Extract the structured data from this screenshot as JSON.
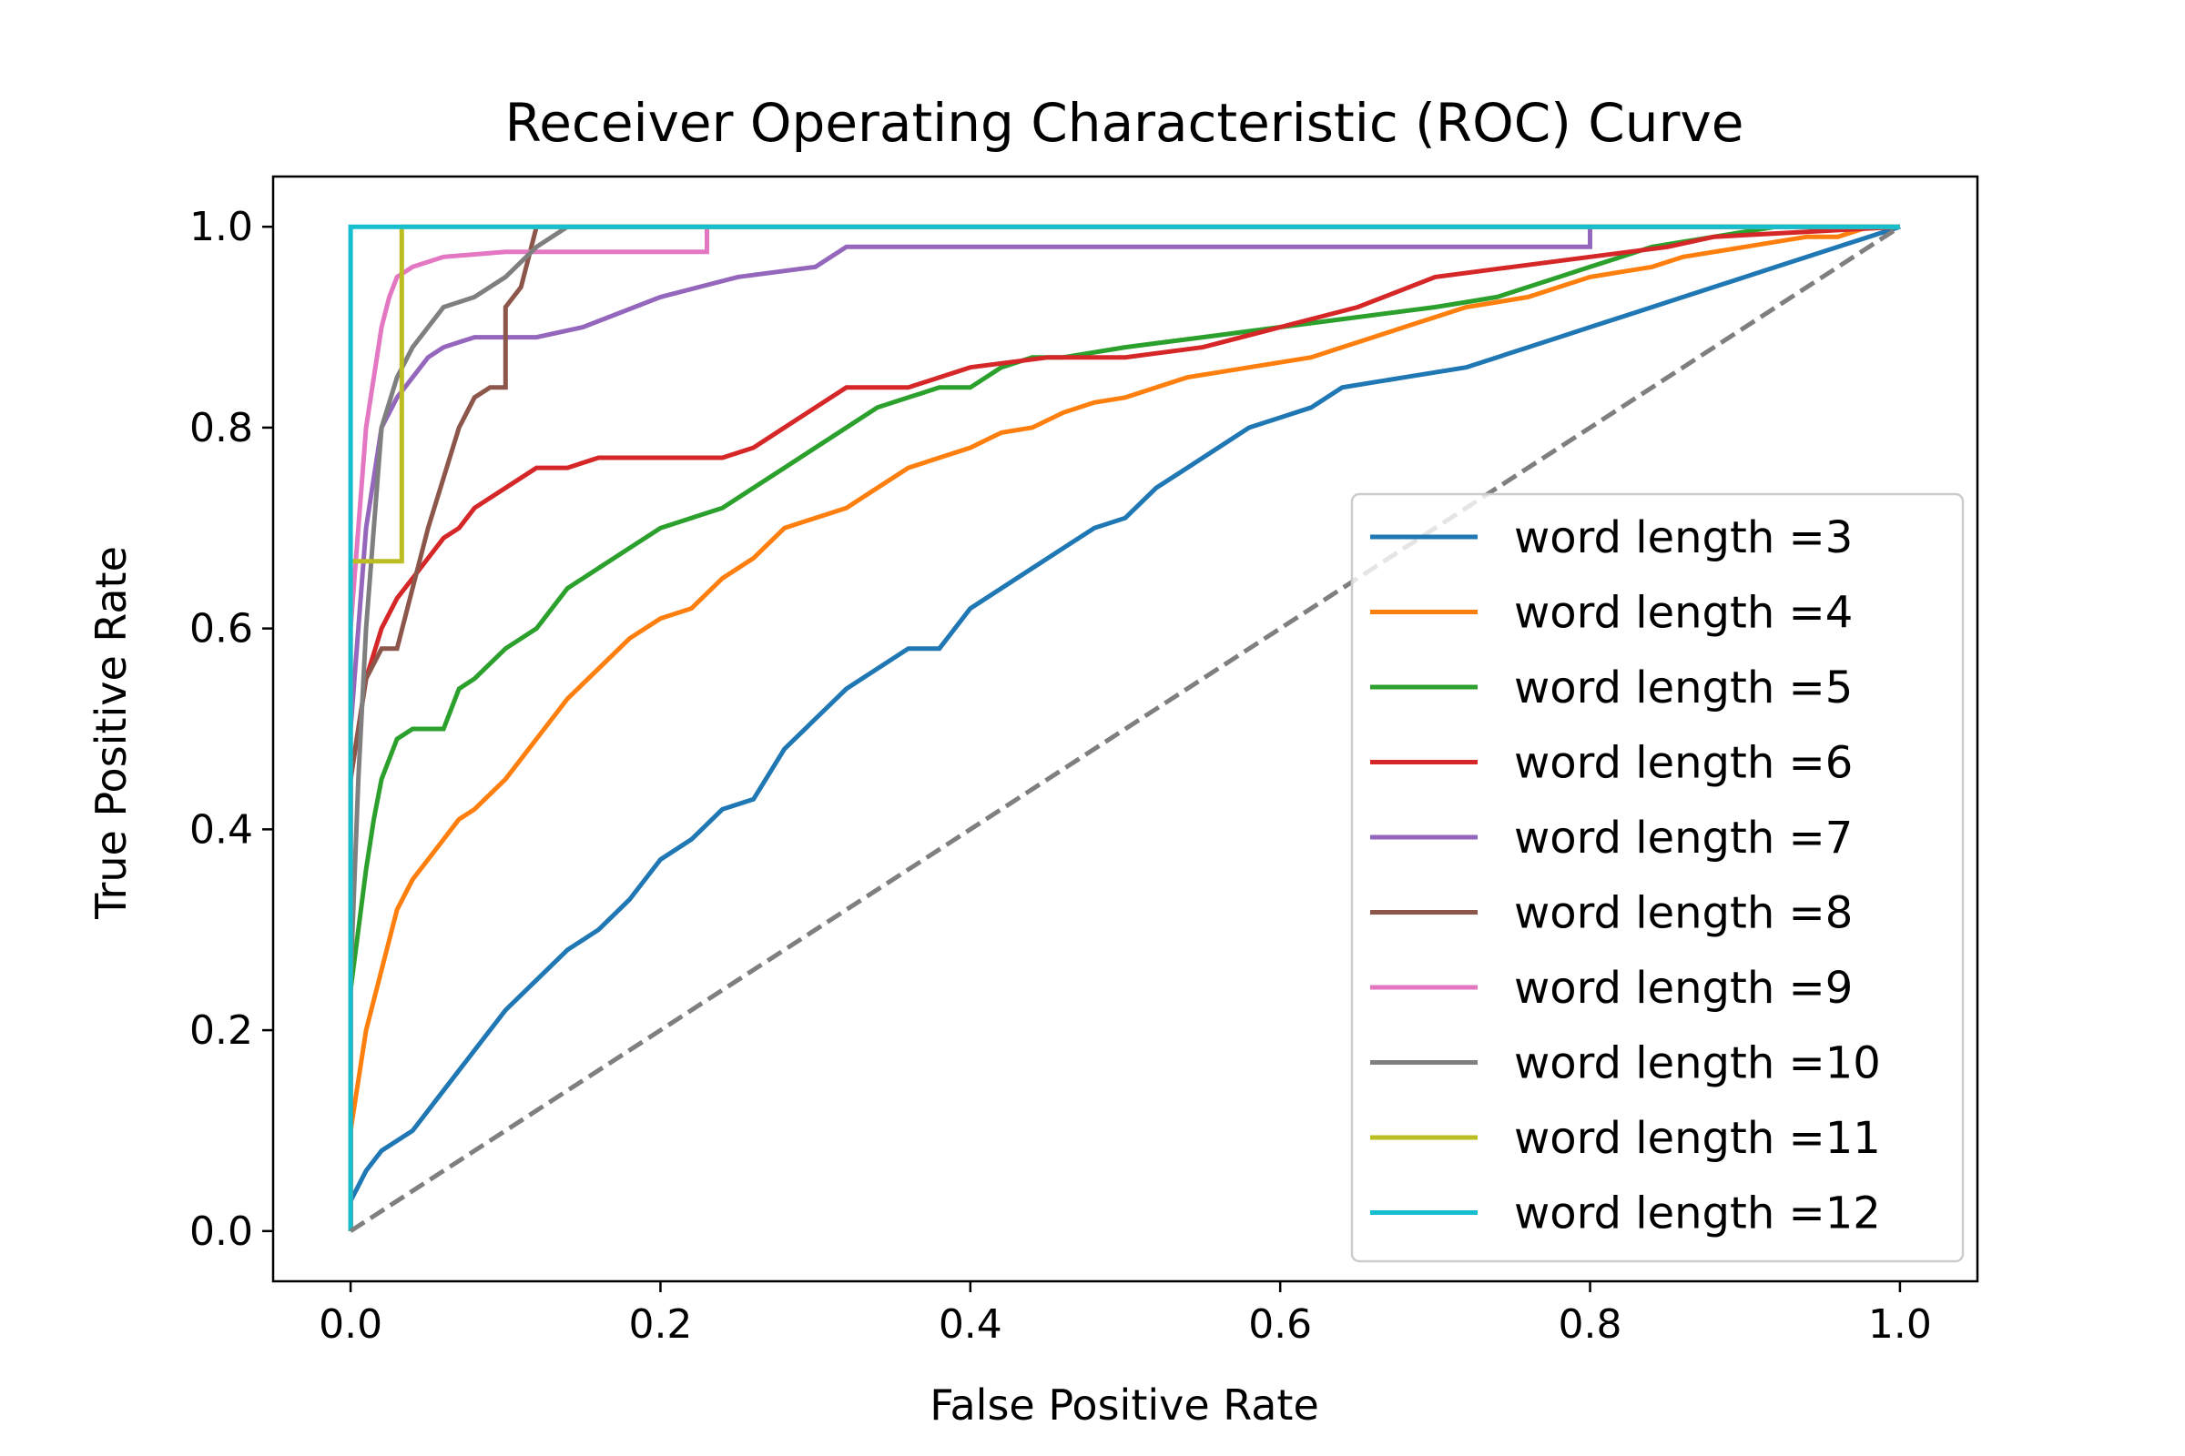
{
  "chart_data": {
    "type": "line",
    "title": "Receiver Operating Characteristic (ROC) Curve",
    "xlabel": "False Positive Rate",
    "ylabel": "True Positive Rate",
    "xlim": [
      -0.05,
      1.05
    ],
    "ylim": [
      -0.05,
      1.05
    ],
    "xticks": [
      0.0,
      0.2,
      0.4,
      0.6,
      0.8,
      1.0
    ],
    "yticks": [
      0.0,
      0.2,
      0.4,
      0.6,
      0.8,
      1.0
    ],
    "xtick_labels": [
      "0.0",
      "0.2",
      "0.4",
      "0.6",
      "0.8",
      "1.0"
    ],
    "ytick_labels": [
      "0.0",
      "0.2",
      "0.4",
      "0.6",
      "0.8",
      "1.0"
    ],
    "grid": false,
    "legend_position": "lower-right",
    "reference_line": {
      "x": [
        0,
        1
      ],
      "y": [
        0,
        1
      ],
      "color": "#7f7f7f",
      "style": "dashed"
    },
    "series": [
      {
        "name": "word length =3",
        "color": "#1f77b4",
        "x": [
          0,
          0,
          0.01,
          0.02,
          0.04,
          0.06,
          0.08,
          0.1,
          0.12,
          0.14,
          0.16,
          0.18,
          0.2,
          0.22,
          0.24,
          0.26,
          0.28,
          0.3,
          0.32,
          0.34,
          0.36,
          0.38,
          0.4,
          0.42,
          0.44,
          0.46,
          0.48,
          0.5,
          0.52,
          0.54,
          0.56,
          0.58,
          0.6,
          0.62,
          0.64,
          0.66,
          0.68,
          0.7,
          0.72,
          0.74,
          0.76,
          0.78,
          0.8,
          0.82,
          0.84,
          0.86,
          0.88,
          0.9,
          0.92,
          0.94,
          0.96,
          0.98,
          1.0
        ],
        "y": [
          0,
          0.03,
          0.06,
          0.08,
          0.1,
          0.14,
          0.18,
          0.22,
          0.25,
          0.28,
          0.3,
          0.33,
          0.37,
          0.39,
          0.42,
          0.43,
          0.48,
          0.51,
          0.54,
          0.56,
          0.58,
          0.58,
          0.62,
          0.64,
          0.66,
          0.68,
          0.7,
          0.71,
          0.74,
          0.76,
          0.78,
          0.8,
          0.81,
          0.82,
          0.84,
          0.845,
          0.85,
          0.855,
          0.86,
          0.87,
          0.88,
          0.89,
          0.9,
          0.91,
          0.92,
          0.93,
          0.94,
          0.95,
          0.96,
          0.97,
          0.98,
          0.99,
          1.0
        ]
      },
      {
        "name": "word length =4",
        "color": "#ff7f0e",
        "x": [
          0,
          0,
          0.005,
          0.01,
          0.02,
          0.03,
          0.04,
          0.05,
          0.06,
          0.07,
          0.08,
          0.1,
          0.12,
          0.14,
          0.16,
          0.18,
          0.2,
          0.22,
          0.24,
          0.26,
          0.28,
          0.3,
          0.32,
          0.34,
          0.36,
          0.38,
          0.4,
          0.42,
          0.44,
          0.46,
          0.48,
          0.5,
          0.52,
          0.54,
          0.56,
          0.58,
          0.6,
          0.62,
          0.64,
          0.66,
          0.68,
          0.7,
          0.72,
          0.74,
          0.76,
          0.78,
          0.8,
          0.82,
          0.84,
          0.86,
          0.88,
          0.9,
          0.92,
          0.94,
          0.96,
          0.98,
          1.0
        ],
        "y": [
          0,
          0.1,
          0.15,
          0.2,
          0.26,
          0.32,
          0.35,
          0.37,
          0.39,
          0.41,
          0.42,
          0.45,
          0.49,
          0.53,
          0.56,
          0.59,
          0.61,
          0.62,
          0.65,
          0.67,
          0.7,
          0.71,
          0.72,
          0.74,
          0.76,
          0.77,
          0.78,
          0.795,
          0.8,
          0.815,
          0.825,
          0.83,
          0.84,
          0.85,
          0.855,
          0.86,
          0.865,
          0.87,
          0.88,
          0.89,
          0.9,
          0.91,
          0.92,
          0.925,
          0.93,
          0.94,
          0.95,
          0.955,
          0.96,
          0.97,
          0.975,
          0.98,
          0.985,
          0.99,
          0.99,
          1.0,
          1.0
        ]
      },
      {
        "name": "word length =5",
        "color": "#2ca02c",
        "x": [
          0,
          0,
          0.005,
          0.01,
          0.015,
          0.02,
          0.03,
          0.04,
          0.06,
          0.07,
          0.08,
          0.1,
          0.11,
          0.12,
          0.14,
          0.16,
          0.18,
          0.2,
          0.22,
          0.24,
          0.26,
          0.28,
          0.3,
          0.32,
          0.34,
          0.36,
          0.38,
          0.4,
          0.42,
          0.44,
          0.46,
          0.5,
          0.55,
          0.6,
          0.65,
          0.7,
          0.72,
          0.74,
          0.76,
          0.78,
          0.8,
          0.82,
          0.84,
          0.86,
          0.88,
          0.9,
          0.92,
          1.0
        ],
        "y": [
          0,
          0.24,
          0.3,
          0.36,
          0.41,
          0.45,
          0.49,
          0.5,
          0.5,
          0.54,
          0.55,
          0.58,
          0.59,
          0.6,
          0.64,
          0.66,
          0.68,
          0.7,
          0.71,
          0.72,
          0.74,
          0.76,
          0.78,
          0.8,
          0.82,
          0.83,
          0.84,
          0.84,
          0.86,
          0.87,
          0.87,
          0.88,
          0.89,
          0.9,
          0.91,
          0.92,
          0.925,
          0.93,
          0.94,
          0.95,
          0.96,
          0.97,
          0.98,
          0.985,
          0.99,
          0.995,
          1.0,
          1.0
        ]
      },
      {
        "name": "word length =6",
        "color": "#d62728",
        "x": [
          0,
          0,
          0.005,
          0.01,
          0.02,
          0.03,
          0.04,
          0.05,
          0.06,
          0.07,
          0.08,
          0.1,
          0.12,
          0.14,
          0.16,
          0.18,
          0.2,
          0.22,
          0.24,
          0.26,
          0.28,
          0.3,
          0.32,
          0.34,
          0.36,
          0.38,
          0.4,
          0.45,
          0.5,
          0.55,
          0.6,
          0.65,
          0.7,
          0.75,
          0.8,
          0.85,
          0.88,
          1.0
        ],
        "y": [
          0,
          0.45,
          0.5,
          0.55,
          0.6,
          0.63,
          0.65,
          0.67,
          0.69,
          0.7,
          0.72,
          0.74,
          0.76,
          0.76,
          0.77,
          0.77,
          0.77,
          0.77,
          0.77,
          0.78,
          0.8,
          0.82,
          0.84,
          0.84,
          0.84,
          0.85,
          0.86,
          0.87,
          0.87,
          0.88,
          0.9,
          0.92,
          0.95,
          0.96,
          0.97,
          0.98,
          0.99,
          1.0
        ]
      },
      {
        "name": "word length =7",
        "color": "#9467bd",
        "x": [
          0,
          0,
          0.005,
          0.01,
          0.02,
          0.03,
          0.04,
          0.05,
          0.06,
          0.08,
          0.1,
          0.12,
          0.15,
          0.2,
          0.25,
          0.3,
          0.32,
          0.34,
          0.5,
          0.7,
          0.8,
          0.8,
          1.0
        ],
        "y": [
          0,
          0.5,
          0.6,
          0.7,
          0.8,
          0.83,
          0.85,
          0.87,
          0.88,
          0.89,
          0.89,
          0.89,
          0.9,
          0.93,
          0.95,
          0.96,
          0.98,
          0.98,
          0.98,
          0.98,
          0.98,
          1.0,
          1.0
        ]
      },
      {
        "name": "word length =8",
        "color": "#8c564b",
        "x": [
          0,
          0,
          0.005,
          0.01,
          0.02,
          0.03,
          0.05,
          0.06,
          0.07,
          0.08,
          0.09,
          0.1,
          0.1,
          0.11,
          0.12,
          1.0
        ],
        "y": [
          0,
          0.45,
          0.5,
          0.55,
          0.58,
          0.58,
          0.7,
          0.75,
          0.8,
          0.83,
          0.84,
          0.84,
          0.92,
          0.94,
          1.0,
          1.0
        ]
      },
      {
        "name": "word length =9",
        "color": "#e377c2",
        "x": [
          0,
          0,
          0.005,
          0.01,
          0.015,
          0.02,
          0.025,
          0.03,
          0.04,
          0.06,
          0.1,
          0.2,
          0.23,
          0.23,
          1.0
        ],
        "y": [
          0,
          0.6,
          0.7,
          0.8,
          0.85,
          0.9,
          0.93,
          0.95,
          0.96,
          0.97,
          0.975,
          0.975,
          0.975,
          1.0,
          1.0
        ]
      },
      {
        "name": "word length =10",
        "color": "#7f7f7f",
        "x": [
          0,
          0,
          0.005,
          0.01,
          0.015,
          0.02,
          0.03,
          0.04,
          0.05,
          0.06,
          0.08,
          0.1,
          0.12,
          0.14,
          1.0
        ],
        "y": [
          0,
          0.25,
          0.45,
          0.6,
          0.7,
          0.8,
          0.85,
          0.88,
          0.9,
          0.92,
          0.93,
          0.95,
          0.98,
          1.0,
          1.0
        ]
      },
      {
        "name": "word length =11",
        "color": "#bcbd22",
        "x": [
          0,
          0,
          0.005,
          0.033,
          0.033,
          1.0
        ],
        "y": [
          0,
          0.667,
          0.667,
          0.667,
          1.0,
          1.0
        ]
      },
      {
        "name": "word length =12",
        "color": "#17becf",
        "x": [
          0,
          0,
          1.0
        ],
        "y": [
          0,
          1.0,
          1.0
        ]
      }
    ]
  }
}
